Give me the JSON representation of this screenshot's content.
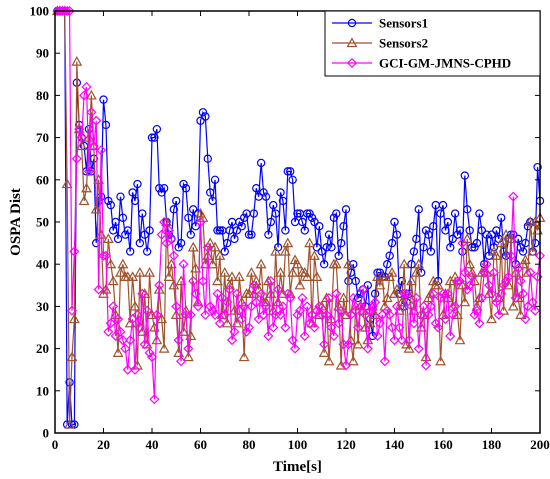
{
  "chart_data": {
    "type": "line",
    "xlabel": "Time[s]",
    "ylabel": "OSPA Dist",
    "xlim": [
      0,
      200
    ],
    "ylim": [
      0,
      100
    ],
    "xticks": [
      0,
      20,
      40,
      60,
      80,
      100,
      120,
      140,
      160,
      180,
      200
    ],
    "yticks": [
      0,
      10,
      20,
      30,
      40,
      50,
      60,
      70,
      80,
      90,
      100
    ],
    "grid": false,
    "legend_position": "top-right",
    "x": [
      1,
      2,
      3,
      4,
      5,
      6,
      7,
      8,
      9,
      10,
      11,
      12,
      13,
      14,
      15,
      16,
      17,
      18,
      19,
      20,
      21,
      22,
      23,
      24,
      25,
      26,
      27,
      28,
      29,
      30,
      31,
      32,
      33,
      34,
      35,
      36,
      37,
      38,
      39,
      40,
      41,
      42,
      43,
      44,
      45,
      46,
      47,
      48,
      49,
      50,
      51,
      52,
      53,
      54,
      55,
      56,
      57,
      58,
      59,
      60,
      61,
      62,
      63,
      64,
      65,
      66,
      67,
      68,
      69,
      70,
      71,
      72,
      73,
      74,
      75,
      76,
      77,
      78,
      79,
      80,
      81,
      82,
      83,
      84,
      85,
      86,
      87,
      88,
      89,
      90,
      91,
      92,
      93,
      94,
      95,
      96,
      97,
      98,
      99,
      100,
      101,
      102,
      103,
      104,
      105,
      106,
      107,
      108,
      109,
      110,
      111,
      112,
      113,
      114,
      115,
      116,
      117,
      118,
      119,
      120,
      121,
      122,
      123,
      124,
      125,
      126,
      127,
      128,
      129,
      130,
      131,
      132,
      133,
      134,
      135,
      136,
      137,
      138,
      139,
      140,
      141,
      142,
      143,
      144,
      145,
      146,
      147,
      148,
      149,
      150,
      151,
      152,
      153,
      154,
      155,
      156,
      157,
      158,
      159,
      160,
      161,
      162,
      163,
      164,
      165,
      166,
      167,
      168,
      169,
      170,
      171,
      172,
      173,
      174,
      175,
      176,
      177,
      178,
      179,
      180,
      181,
      182,
      183,
      184,
      185,
      186,
      187,
      188,
      189,
      190,
      191,
      192,
      193,
      194,
      195,
      196,
      197,
      198,
      199,
      200
    ],
    "series": [
      {
        "name": "Sensors1",
        "color": "#0000ff",
        "marker": "circle",
        "values": [
          100,
          100,
          100,
          100,
          2,
          12,
          2,
          2,
          83,
          73,
          70,
          68,
          62,
          72,
          62,
          65,
          45,
          55,
          56,
          79,
          73,
          55,
          54,
          48,
          50,
          46,
          56,
          51,
          47,
          48,
          43,
          57,
          55,
          59,
          45,
          52,
          47,
          43,
          48,
          70,
          70,
          72,
          58,
          57,
          58,
          50,
          47,
          46,
          53,
          55,
          44,
          45,
          59,
          58,
          51,
          47,
          53,
          49,
          52,
          74,
          76,
          75,
          65,
          57,
          55,
          60,
          48,
          48,
          48,
          43,
          45,
          48,
          50,
          46,
          48,
          50,
          49,
          51,
          52,
          47,
          47,
          52,
          58,
          56,
          64,
          57,
          56,
          47,
          50,
          54,
          52,
          44,
          57,
          55,
          48,
          62,
          62,
          60,
          50,
          52,
          52,
          50,
          48,
          52,
          52,
          51,
          50,
          44,
          49,
          43,
          40,
          44,
          47,
          44,
          51,
          52,
          42,
          45,
          49,
          53,
          36,
          38,
          40,
          36,
          32,
          33,
          34,
          30,
          35,
          27,
          23,
          33,
          38,
          38,
          37,
          37,
          40,
          42,
          45,
          50,
          47,
          33,
          36,
          30,
          31,
          33,
          40,
          43,
          46,
          53,
          38,
          44,
          48,
          47,
          43,
          49,
          54,
          36,
          52,
          54,
          48,
          50,
          44,
          46,
          52,
          47,
          48,
          43,
          61,
          53,
          48,
          44,
          44,
          45,
          52,
          48,
          40,
          47,
          42,
          47,
          44,
          48,
          46,
          51,
          43,
          42,
          46,
          47,
          47,
          40,
          46,
          44,
          43,
          45,
          49,
          50,
          43,
          45,
          63,
          55
        ]
      },
      {
        "name": "Sensors2",
        "color": "#a0522d",
        "marker": "triangle",
        "values": [
          100,
          100,
          100,
          100,
          59,
          2,
          18,
          27,
          88,
          72,
          68,
          55,
          58,
          70,
          80,
          68,
          53,
          60,
          47,
          33,
          34,
          46,
          40,
          36,
          28,
          19,
          38,
          40,
          37,
          37,
          26,
          37,
          30,
          16,
          38,
          24,
          33,
          21,
          38,
          28,
          25,
          22,
          34,
          27,
          20,
          50,
          37,
          40,
          35,
          28,
          19,
          36,
          24,
          29,
          18,
          23,
          44,
          39,
          31,
          52,
          51,
          40,
          42,
          45,
          40,
          44,
          36,
          42,
          28,
          38,
          26,
          35,
          37,
          29,
          26,
          37,
          31,
          18,
          33,
          33,
          38,
          33,
          36,
          34,
          40,
          31,
          31,
          36,
          33,
          29,
          43,
          31,
          38,
          33,
          43,
          45,
          33,
          38,
          41,
          40,
          35,
          38,
          38,
          37,
          45,
          26,
          42,
          37,
          28,
          30,
          19,
          32,
          17,
          27,
          40,
          40,
          30,
          16,
          32,
          28,
          40,
          22,
          17,
          30,
          21,
          30,
          29,
          25,
          22,
          26,
          30,
          28,
          37,
          35,
          37,
          30,
          32,
          37,
          38,
          33,
          34,
          29,
          31,
          40,
          21,
          20,
          36,
          29,
          38,
          40,
          25,
          28,
          18,
          32,
          33,
          36,
          35,
          35,
          17,
          28,
          33,
          32,
          36,
          30,
          37,
          28,
          22,
          35,
          31,
          46,
          40,
          38,
          36,
          30,
          32,
          38,
          39,
          38,
          33,
          27,
          43,
          42,
          32,
          45,
          29,
          47,
          35,
          46,
          30,
          38,
          32,
          28,
          40,
          41,
          38,
          50,
          43,
          50,
          48,
          51
        ]
      },
      {
        "name": "GCI-GM-JMNS-CPHD",
        "color": "#ff00ff",
        "marker": "diamond",
        "values": [
          100,
          100,
          100,
          100,
          100,
          100,
          29,
          43,
          65,
          72,
          70,
          80,
          82,
          62,
          76,
          68,
          74,
          34,
          67,
          42,
          42,
          24,
          26,
          30,
          23,
          27,
          24,
          22,
          20,
          15,
          22,
          27,
          15,
          28,
          25,
          33,
          21,
          29,
          19,
          18,
          8,
          28,
          35,
          47,
          50,
          45,
          48,
          46,
          42,
          30,
          22,
          17,
          40,
          28,
          20,
          28,
          36,
          33,
          30,
          50,
          36,
          28,
          44,
          30,
          29,
          28,
          33,
          26,
          32,
          28,
          31,
          34,
          22,
          24,
          33,
          29,
          27,
          30,
          24,
          25,
          30,
          35,
          31,
          27,
          33,
          28,
          30,
          23,
          36,
          25,
          28,
          34,
          28,
          30,
          25,
          33,
          32,
          22,
          20,
          28,
          29,
          32,
          23,
          30,
          26,
          28,
          25,
          29,
          30,
          28,
          21,
          28,
          32,
          25,
          23,
          33,
          26,
          29,
          21,
          16,
          21,
          28,
          32,
          29,
          25,
          30,
          34,
          28,
          20,
          29,
          30,
          31,
          23,
          26,
          28,
          17,
          29,
          28,
          25,
          22,
          30,
          25,
          22,
          33,
          33,
          22,
          30,
          26,
          32,
          20,
          28,
          30,
          16,
          28,
          30,
          33,
          26,
          25,
          32,
          33,
          27,
          33,
          23,
          28,
          30,
          36,
          36,
          45,
          38,
          34,
          35,
          37,
          28,
          29,
          26,
          32,
          38,
          40,
          35,
          33,
          38,
          31,
          28,
          33,
          35,
          36,
          37,
          42,
          56,
          32,
          39,
          36,
          33,
          27,
          30,
          38,
          31,
          29,
          37,
          42
        ]
      }
    ]
  }
}
